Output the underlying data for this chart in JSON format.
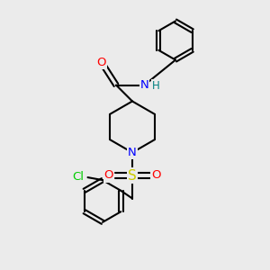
{
  "background_color": "#ebebeb",
  "bond_color": "#000000",
  "atom_colors": {
    "O": "#ff0000",
    "N": "#0000ff",
    "H": "#008080",
    "S": "#cccc00",
    "Cl": "#00cc00"
  },
  "lw": 1.5,
  "fs": 9.5
}
